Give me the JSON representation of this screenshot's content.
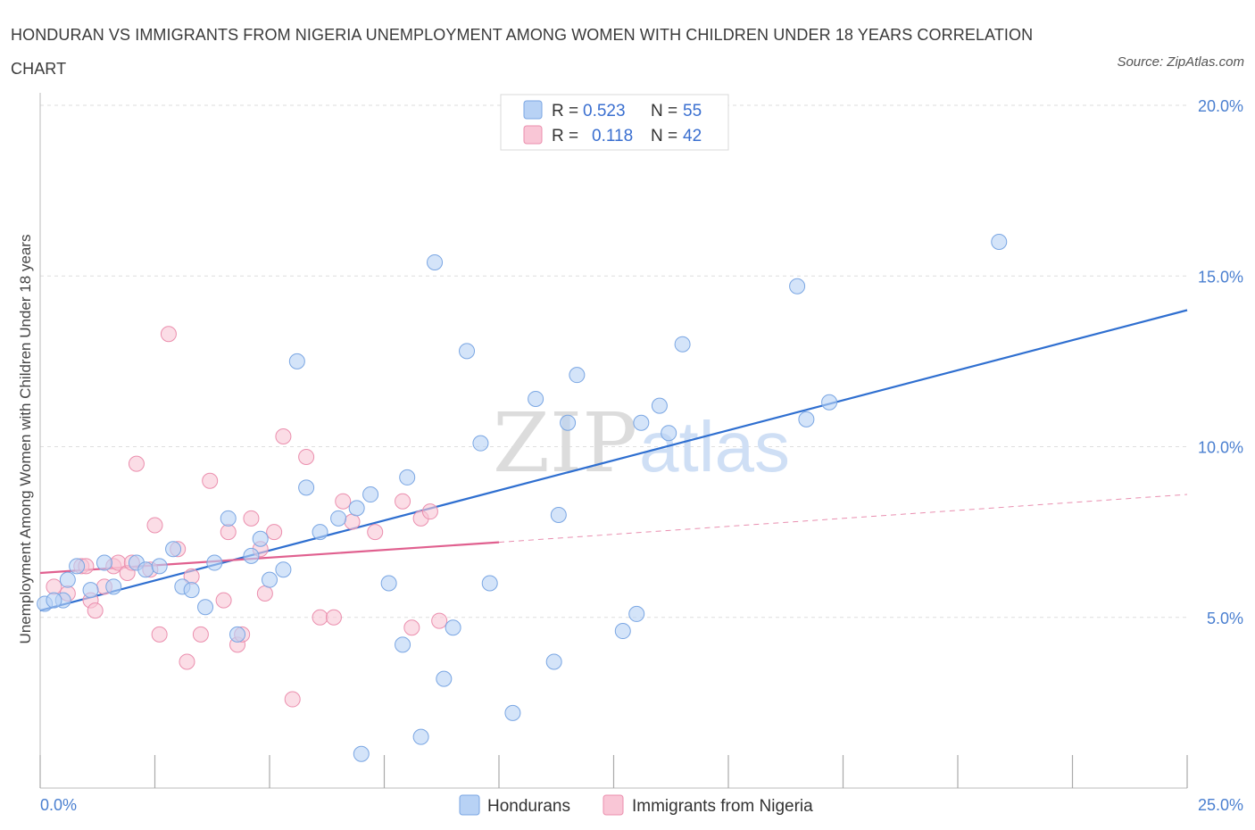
{
  "title": "HONDURAN VS IMMIGRANTS FROM NIGERIA UNEMPLOYMENT AMONG WOMEN WITH CHILDREN UNDER 18 YEARS CORRELATION CHART",
  "source": "Source: ZipAtlas.com",
  "watermark": {
    "part1": "ZIP",
    "part2": "atlas"
  },
  "colors": {
    "blue_fill": "#b8d2f5",
    "blue_stroke": "#7aa6e3",
    "blue_line": "#2f6fd0",
    "pink_fill": "#f9c6d6",
    "pink_stroke": "#eb8fae",
    "pink_line": "#e0608f",
    "grid": "#dedede",
    "tick_text": "#4a7fd0"
  },
  "legend": {
    "r_label": "R =",
    "n_label": "N =",
    "entries": [
      {
        "r": "0.523",
        "n": "55"
      },
      {
        "r": "0.118",
        "n": "42"
      }
    ]
  },
  "chart_data": {
    "type": "scatter",
    "title": "HONDURAN VS IMMIGRANTS FROM NIGERIA UNEMPLOYMENT AMONG WOMEN WITH CHILDREN UNDER 18 YEARS CORRELATION CHART",
    "xlabel": "",
    "ylabel": "Unemployment Among Women with Children Under 18 years",
    "xlim": [
      0,
      25
    ],
    "ylim": [
      0,
      20
    ],
    "x_tick_labels": [
      "0.0%",
      "25.0%"
    ],
    "y_tick_labels": [
      "5.0%",
      "10.0%",
      "15.0%",
      "20.0%"
    ],
    "y_tick_values": [
      5,
      10,
      15,
      20
    ],
    "grid": "horizontal dashed",
    "legend_position": "top-center",
    "series": [
      {
        "name": "Hondurans",
        "color": "#b8d2f5",
        "trend": {
          "x": [
            0,
            25
          ],
          "y": [
            5.2,
            14.0
          ],
          "style": "solid"
        },
        "points": [
          [
            0.1,
            5.4
          ],
          [
            0.5,
            5.5
          ],
          [
            0.6,
            6.1
          ],
          [
            0.8,
            6.5
          ],
          [
            1.1,
            5.8
          ],
          [
            1.4,
            6.6
          ],
          [
            1.6,
            5.9
          ],
          [
            2.1,
            6.6
          ],
          [
            2.3,
            6.4
          ],
          [
            2.6,
            6.5
          ],
          [
            2.9,
            7.0
          ],
          [
            3.1,
            5.9
          ],
          [
            3.3,
            5.8
          ],
          [
            3.6,
            5.3
          ],
          [
            3.8,
            6.6
          ],
          [
            4.1,
            7.9
          ],
          [
            4.3,
            4.5
          ],
          [
            4.6,
            6.8
          ],
          [
            4.8,
            7.3
          ],
          [
            5.0,
            6.1
          ],
          [
            5.3,
            6.4
          ],
          [
            5.6,
            12.5
          ],
          [
            5.8,
            8.8
          ],
          [
            6.1,
            7.5
          ],
          [
            6.5,
            7.9
          ],
          [
            6.9,
            8.2
          ],
          [
            7.0,
            1.0
          ],
          [
            7.2,
            8.6
          ],
          [
            7.6,
            6.0
          ],
          [
            7.9,
            4.2
          ],
          [
            8.0,
            9.1
          ],
          [
            8.3,
            1.5
          ],
          [
            8.6,
            15.4
          ],
          [
            8.8,
            3.2
          ],
          [
            9.0,
            4.7
          ],
          [
            9.3,
            12.8
          ],
          [
            9.6,
            10.1
          ],
          [
            9.8,
            6.0
          ],
          [
            10.3,
            2.2
          ],
          [
            10.8,
            11.4
          ],
          [
            11.2,
            3.7
          ],
          [
            11.3,
            8.0
          ],
          [
            11.5,
            10.7
          ],
          [
            11.7,
            12.1
          ],
          [
            12.7,
            4.6
          ],
          [
            13.0,
            5.1
          ],
          [
            13.1,
            10.7
          ],
          [
            13.5,
            11.2
          ],
          [
            13.7,
            10.4
          ],
          [
            14.0,
            13.0
          ],
          [
            16.5,
            14.7
          ],
          [
            16.7,
            10.8
          ],
          [
            17.2,
            11.3
          ],
          [
            20.9,
            16.0
          ],
          [
            0.3,
            5.5
          ]
        ]
      },
      {
        "name": "Immigrants from Nigeria",
        "color": "#f9c6d6",
        "trend": {
          "x": [
            0,
            10
          ],
          "y": [
            6.3,
            7.2
          ],
          "style": "solid",
          "extension": {
            "x": [
              10,
              25
            ],
            "y": [
              7.2,
              8.6
            ],
            "style": "dashed"
          }
        },
        "points": [
          [
            0.3,
            5.9
          ],
          [
            0.6,
            5.7
          ],
          [
            0.9,
            6.5
          ],
          [
            1.1,
            5.5
          ],
          [
            1.2,
            5.2
          ],
          [
            1.4,
            5.9
          ],
          [
            1.6,
            6.5
          ],
          [
            1.7,
            6.6
          ],
          [
            1.9,
            6.3
          ],
          [
            2.1,
            9.5
          ],
          [
            2.4,
            6.4
          ],
          [
            2.5,
            7.7
          ],
          [
            2.6,
            4.5
          ],
          [
            2.8,
            13.3
          ],
          [
            3.0,
            7.0
          ],
          [
            3.2,
            3.7
          ],
          [
            3.3,
            6.2
          ],
          [
            3.5,
            4.5
          ],
          [
            3.7,
            9.0
          ],
          [
            4.0,
            5.5
          ],
          [
            4.1,
            7.5
          ],
          [
            4.3,
            4.2
          ],
          [
            4.4,
            4.5
          ],
          [
            4.6,
            7.9
          ],
          [
            4.8,
            7.0
          ],
          [
            4.9,
            5.7
          ],
          [
            5.1,
            7.5
          ],
          [
            5.3,
            10.3
          ],
          [
            5.5,
            2.6
          ],
          [
            5.8,
            9.7
          ],
          [
            6.1,
            5.0
          ],
          [
            6.4,
            5.0
          ],
          [
            6.6,
            8.4
          ],
          [
            6.8,
            7.8
          ],
          [
            7.3,
            7.5
          ],
          [
            7.9,
            8.4
          ],
          [
            8.1,
            4.7
          ],
          [
            8.3,
            7.9
          ],
          [
            8.5,
            8.1
          ],
          [
            8.7,
            4.9
          ],
          [
            2.0,
            6.6
          ],
          [
            1.0,
            6.5
          ]
        ]
      }
    ]
  },
  "bottom_legend": [
    "Hondurans",
    "Immigrants from Nigeria"
  ]
}
